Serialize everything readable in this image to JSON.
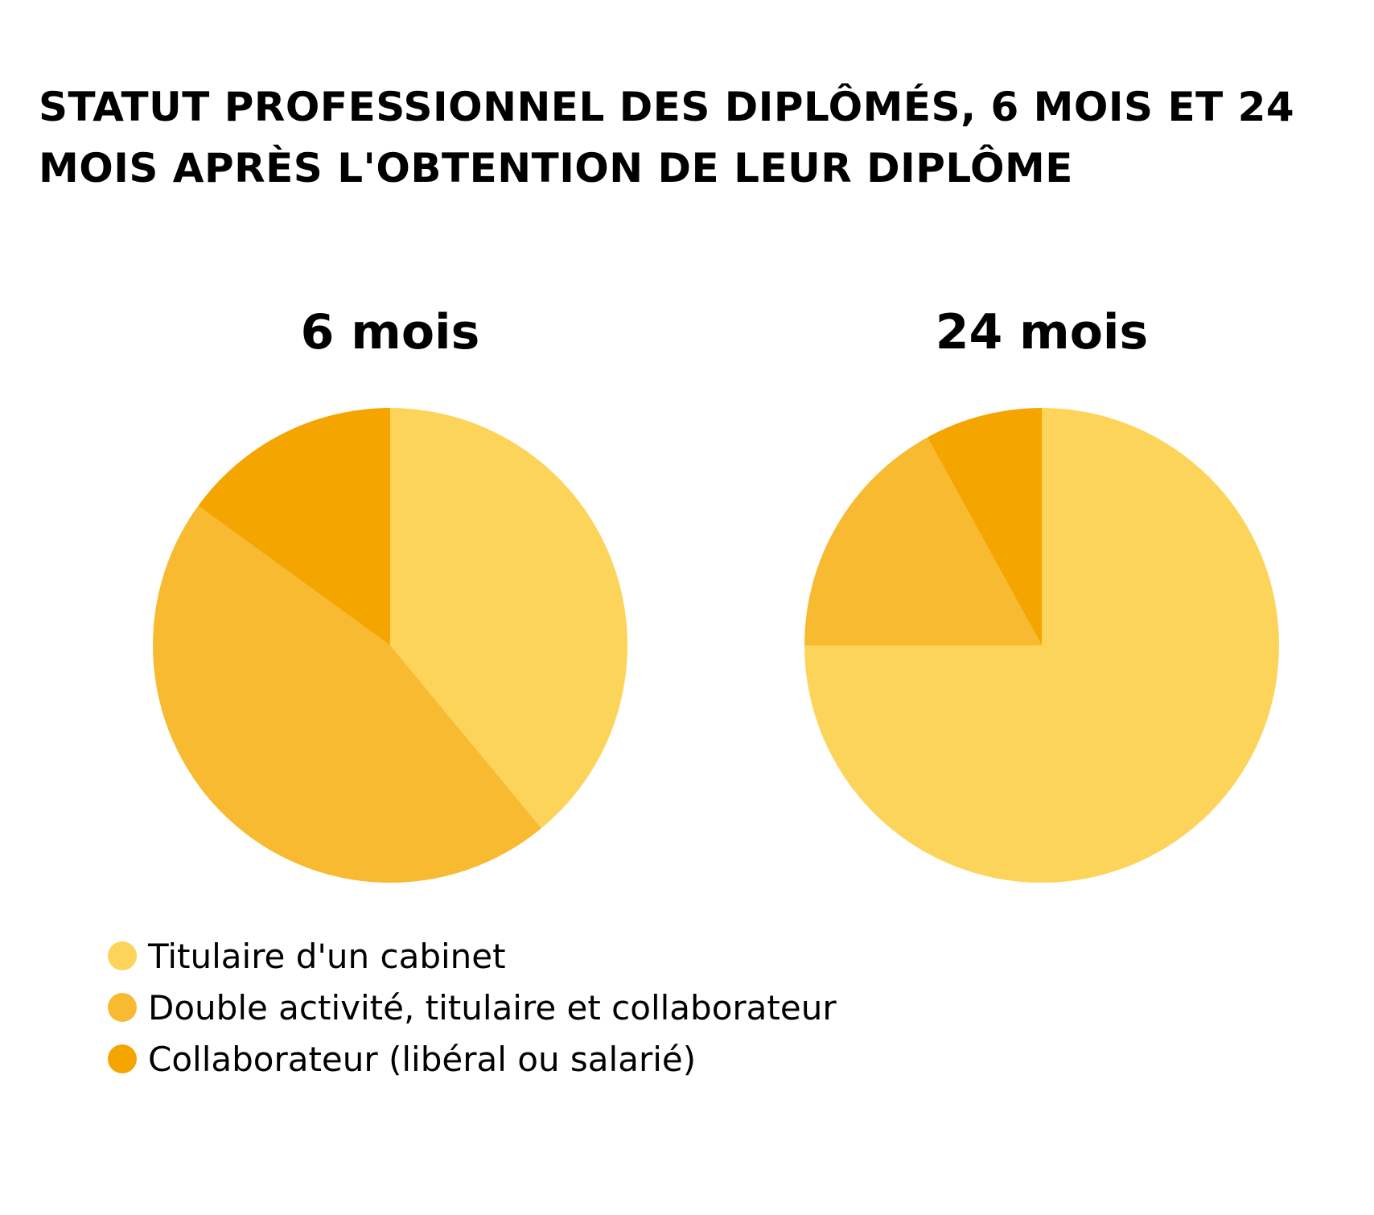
{
  "title": "Statut professionnel des diplômés, 6 mois et 24 mois après l'obtention de leur diplôme",
  "chart_data": [
    {
      "type": "pie",
      "title": "6 mois",
      "categories": [
        "Titulaire d'un cabinet",
        "Double activité, titulaire et collaborateur",
        "Collaborateur (libéral ou salarié)"
      ],
      "values": [
        39,
        46,
        15
      ],
      "colors": [
        "#FDD45A",
        "#F7BA31",
        "#F5A500"
      ],
      "start_angle": "12 o'clock",
      "direction": "clockwise"
    },
    {
      "type": "pie",
      "title": "24 mois",
      "categories": [
        "Titulaire d'un cabinet",
        "Double activité, titulaire et collaborateur",
        "Collaborateur (libéral ou salarié)"
      ],
      "values": [
        75,
        17,
        8
      ],
      "colors": [
        "#FDD45A",
        "#F7BA31",
        "#F5A500"
      ],
      "start_angle": "12 o'clock",
      "direction": "clockwise"
    }
  ],
  "legend": {
    "placement": "bottom-left",
    "items": [
      {
        "label": "Titulaire d'un cabinet",
        "color": "#FDD45A"
      },
      {
        "label": "Double activité, titulaire et collaborateur",
        "color": "#F7BA31"
      },
      {
        "label": "Collaborateur (libéral ou salarié)",
        "color": "#F5A500"
      }
    ]
  }
}
